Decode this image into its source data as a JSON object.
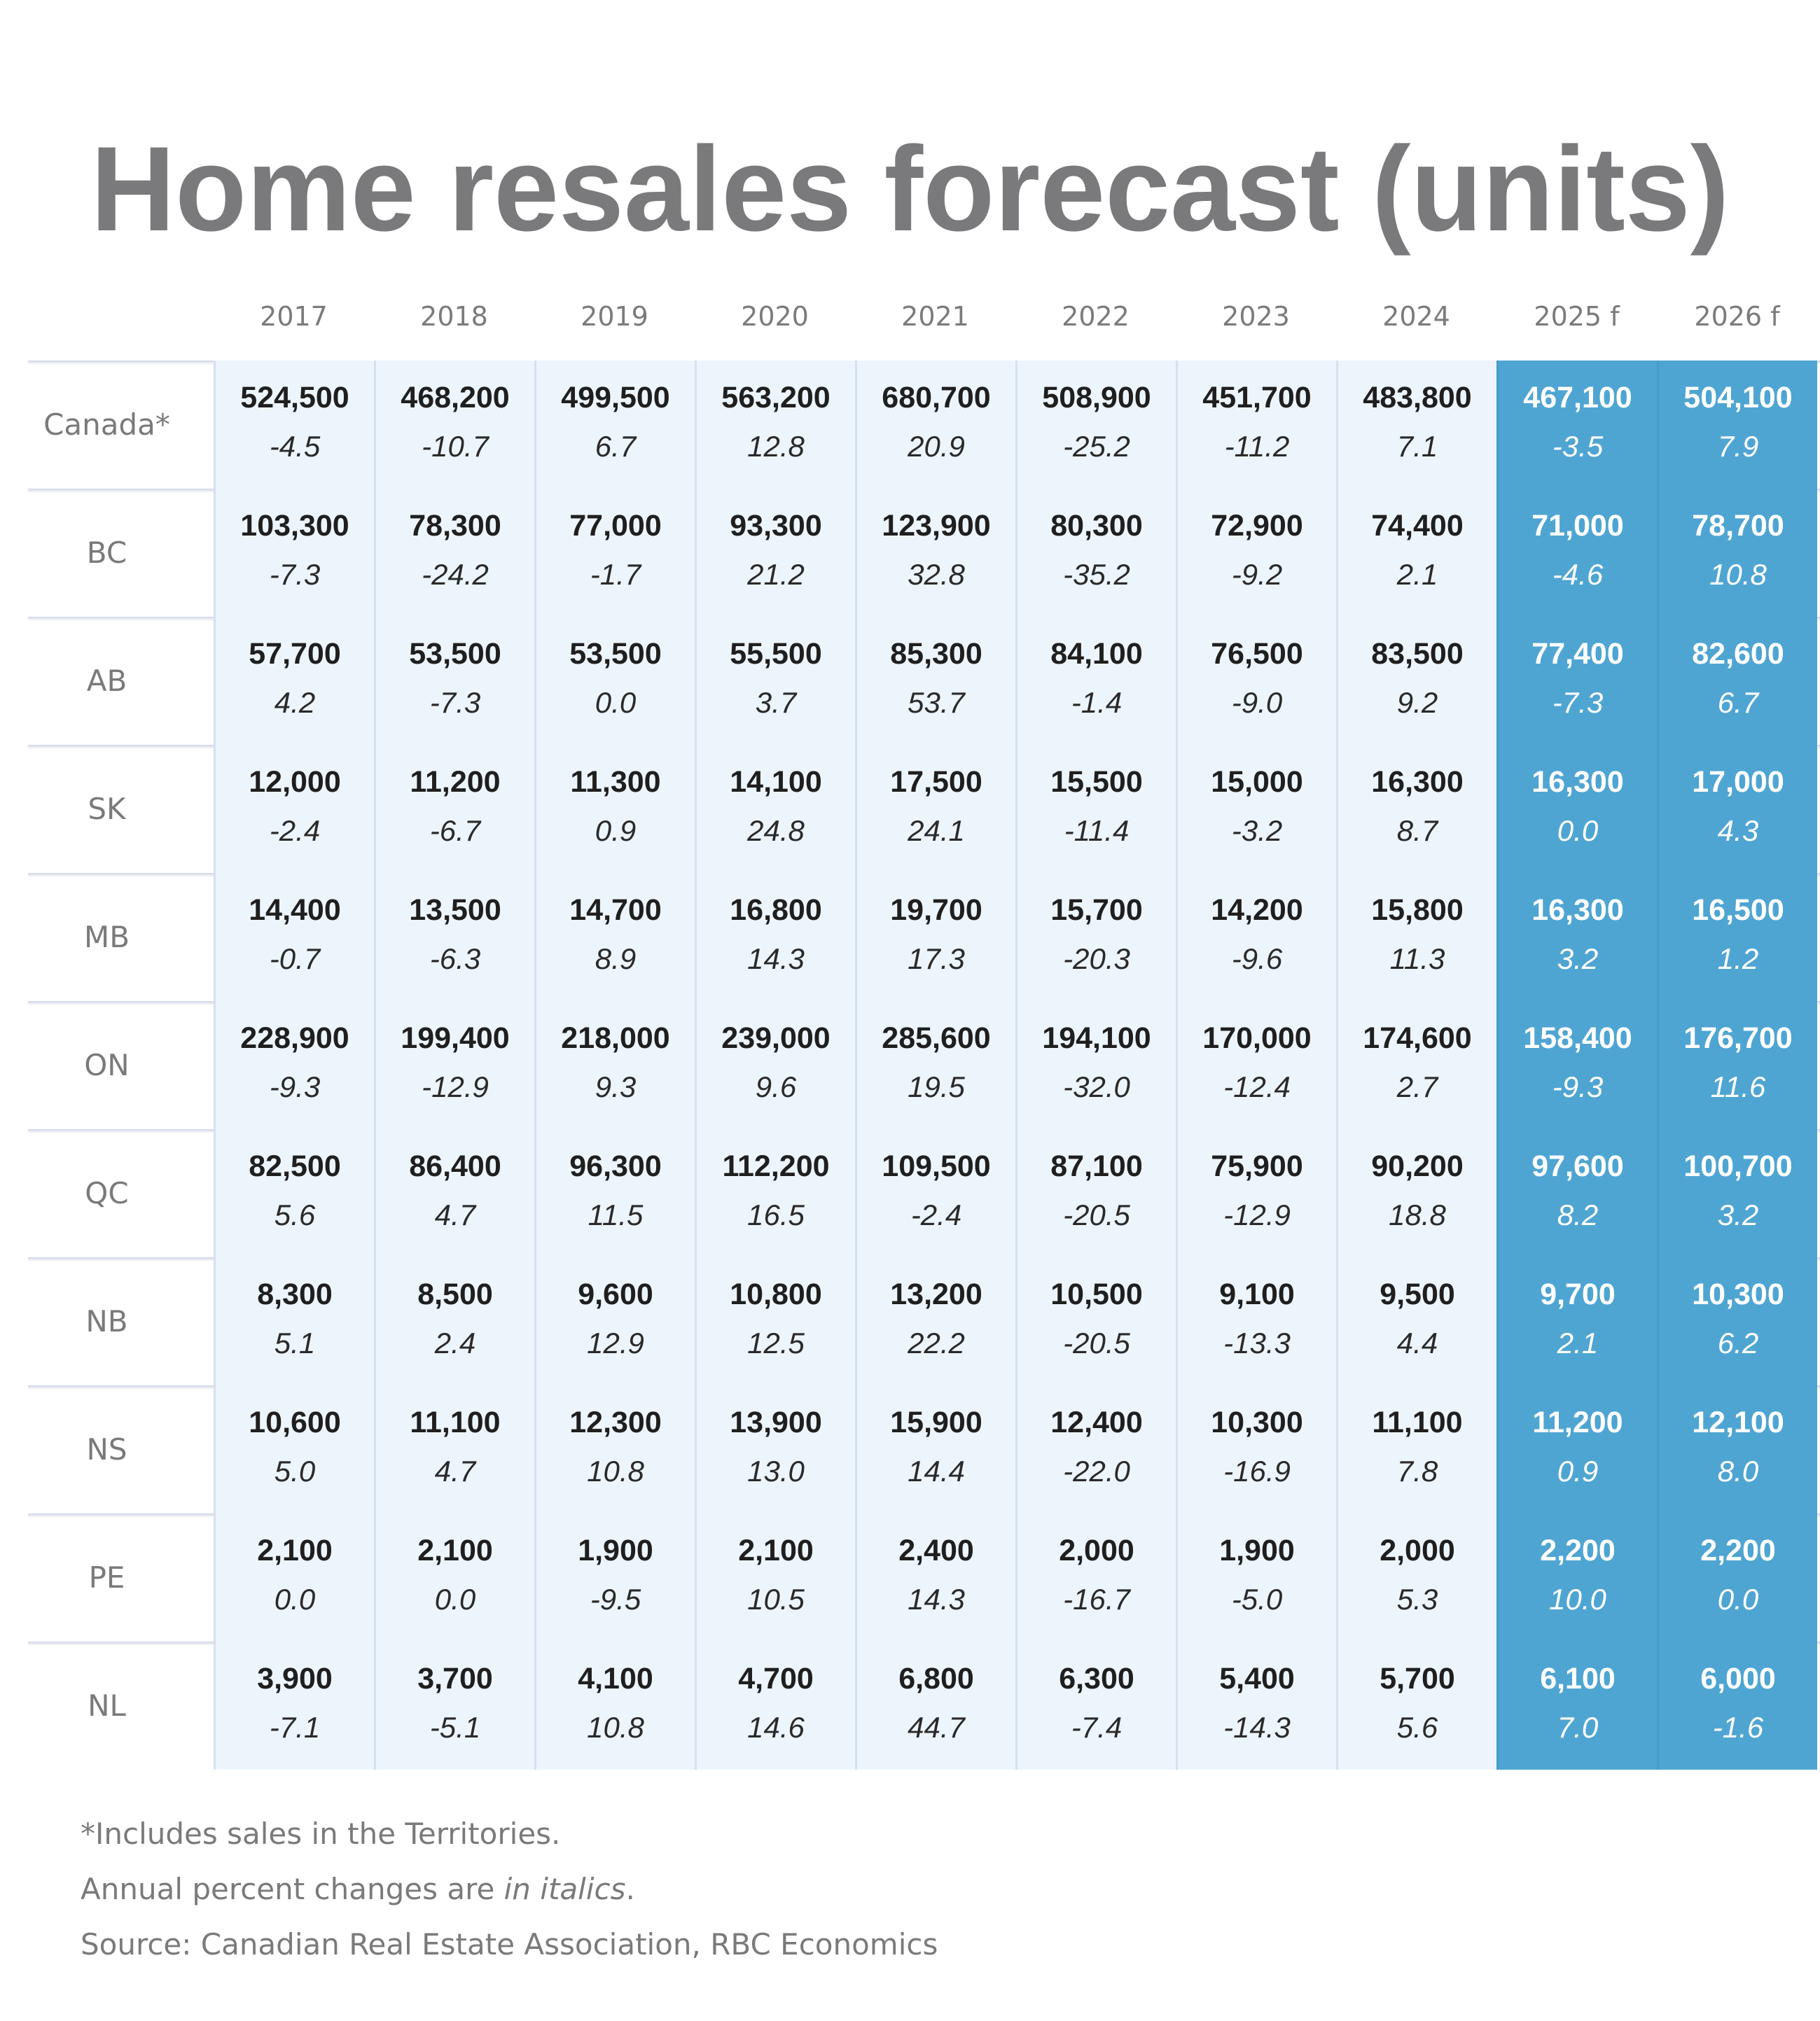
{
  "title": "Home resales forecast (units)",
  "colors": {
    "history_cell": "#edf5fc",
    "forecast_cell": "#4fa5d2",
    "text": "#1f1f1f",
    "label": "#7a7a7c"
  },
  "columns": [
    "2017",
    "2018",
    "2019",
    "2020",
    "2021",
    "2022",
    "2023",
    "2024",
    "2025 f",
    "2026 f"
  ],
  "forecast_columns": [
    "2025 f",
    "2026 f"
  ],
  "rows": [
    {
      "label": "Canada*",
      "values": [
        "524,500",
        "468,200",
        "499,500",
        "563,200",
        "680,700",
        "508,900",
        "451,700",
        "483,800",
        "467,100",
        "504,100"
      ],
      "changes": [
        "-4.5",
        "-10.7",
        "6.7",
        "12.8",
        "20.9",
        "-25.2",
        "-11.2",
        "7.1",
        "-3.5",
        "7.9"
      ]
    },
    {
      "label": "BC",
      "values": [
        "103,300",
        "78,300",
        "77,000",
        "93,300",
        "123,900",
        "80,300",
        "72,900",
        "74,400",
        "71,000",
        "78,700"
      ],
      "changes": [
        "-7.3",
        "-24.2",
        "-1.7",
        "21.2",
        "32.8",
        "-35.2",
        "-9.2",
        "2.1",
        "-4.6",
        "10.8"
      ]
    },
    {
      "label": "AB",
      "values": [
        "57,700",
        "53,500",
        "53,500",
        "55,500",
        "85,300",
        "84,100",
        "76,500",
        "83,500",
        "77,400",
        "82,600"
      ],
      "changes": [
        "4.2",
        "-7.3",
        "0.0",
        "3.7",
        "53.7",
        "-1.4",
        "-9.0",
        "9.2",
        "-7.3",
        "6.7"
      ]
    },
    {
      "label": "SK",
      "values": [
        "12,000",
        "11,200",
        "11,300",
        "14,100",
        "17,500",
        "15,500",
        "15,000",
        "16,300",
        "16,300",
        "17,000"
      ],
      "changes": [
        "-2.4",
        "-6.7",
        "0.9",
        "24.8",
        "24.1",
        "-11.4",
        "-3.2",
        "8.7",
        "0.0",
        "4.3"
      ]
    },
    {
      "label": "MB",
      "values": [
        "14,400",
        "13,500",
        "14,700",
        "16,800",
        "19,700",
        "15,700",
        "14,200",
        "15,800",
        "16,300",
        "16,500"
      ],
      "changes": [
        "-0.7",
        "-6.3",
        "8.9",
        "14.3",
        "17.3",
        "-20.3",
        "-9.6",
        "11.3",
        "3.2",
        "1.2"
      ]
    },
    {
      "label": "ON",
      "values": [
        "228,900",
        "199,400",
        "218,000",
        "239,000",
        "285,600",
        "194,100",
        "170,000",
        "174,600",
        "158,400",
        "176,700"
      ],
      "changes": [
        "-9.3",
        "-12.9",
        "9.3",
        "9.6",
        "19.5",
        "-32.0",
        "-12.4",
        "2.7",
        "-9.3",
        "11.6"
      ]
    },
    {
      "label": "QC",
      "values": [
        "82,500",
        "86,400",
        "96,300",
        "112,200",
        "109,500",
        "87,100",
        "75,900",
        "90,200",
        "97,600",
        "100,700"
      ],
      "changes": [
        "5.6",
        "4.7",
        "11.5",
        "16.5",
        "-2.4",
        "-20.5",
        "-12.9",
        "18.8",
        "8.2",
        "3.2"
      ]
    },
    {
      "label": "NB",
      "values": [
        "8,300",
        "8,500",
        "9,600",
        "10,800",
        "13,200",
        "10,500",
        "9,100",
        "9,500",
        "9,700",
        "10,300"
      ],
      "changes": [
        "5.1",
        "2.4",
        "12.9",
        "12.5",
        "22.2",
        "-20.5",
        "-13.3",
        "4.4",
        "2.1",
        "6.2"
      ]
    },
    {
      "label": "NS",
      "values": [
        "10,600",
        "11,100",
        "12,300",
        "13,900",
        "15,900",
        "12,400",
        "10,300",
        "11,100",
        "11,200",
        "12,100"
      ],
      "changes": [
        "5.0",
        "4.7",
        "10.8",
        "13.0",
        "14.4",
        "-22.0",
        "-16.9",
        "7.8",
        "0.9",
        "8.0"
      ]
    },
    {
      "label": "PE",
      "values": [
        "2,100",
        "2,100",
        "1,900",
        "2,100",
        "2,400",
        "2,000",
        "1,900",
        "2,000",
        "2,200",
        "2,200"
      ],
      "changes": [
        "0.0",
        "0.0",
        "-9.5",
        "10.5",
        "14.3",
        "-16.7",
        "-5.0",
        "5.3",
        "10.0",
        "0.0"
      ]
    },
    {
      "label": "NL",
      "values": [
        "3,900",
        "3,700",
        "4,100",
        "4,700",
        "6,800",
        "6,300",
        "5,400",
        "5,700",
        "6,100",
        "6,000"
      ],
      "changes": [
        "-7.1",
        "-5.1",
        "10.8",
        "14.6",
        "44.7",
        "-7.4",
        "-14.3",
        "5.6",
        "7.0",
        "-1.6"
      ]
    }
  ],
  "footnotes": {
    "territories": "*Includes sales in the Territories.",
    "italics_prefix": "Annual percent changes are ",
    "italics_word": "in italics",
    "italics_suffix": ".",
    "source": "Source: Canadian Real Estate Association, RBC Economics"
  }
}
